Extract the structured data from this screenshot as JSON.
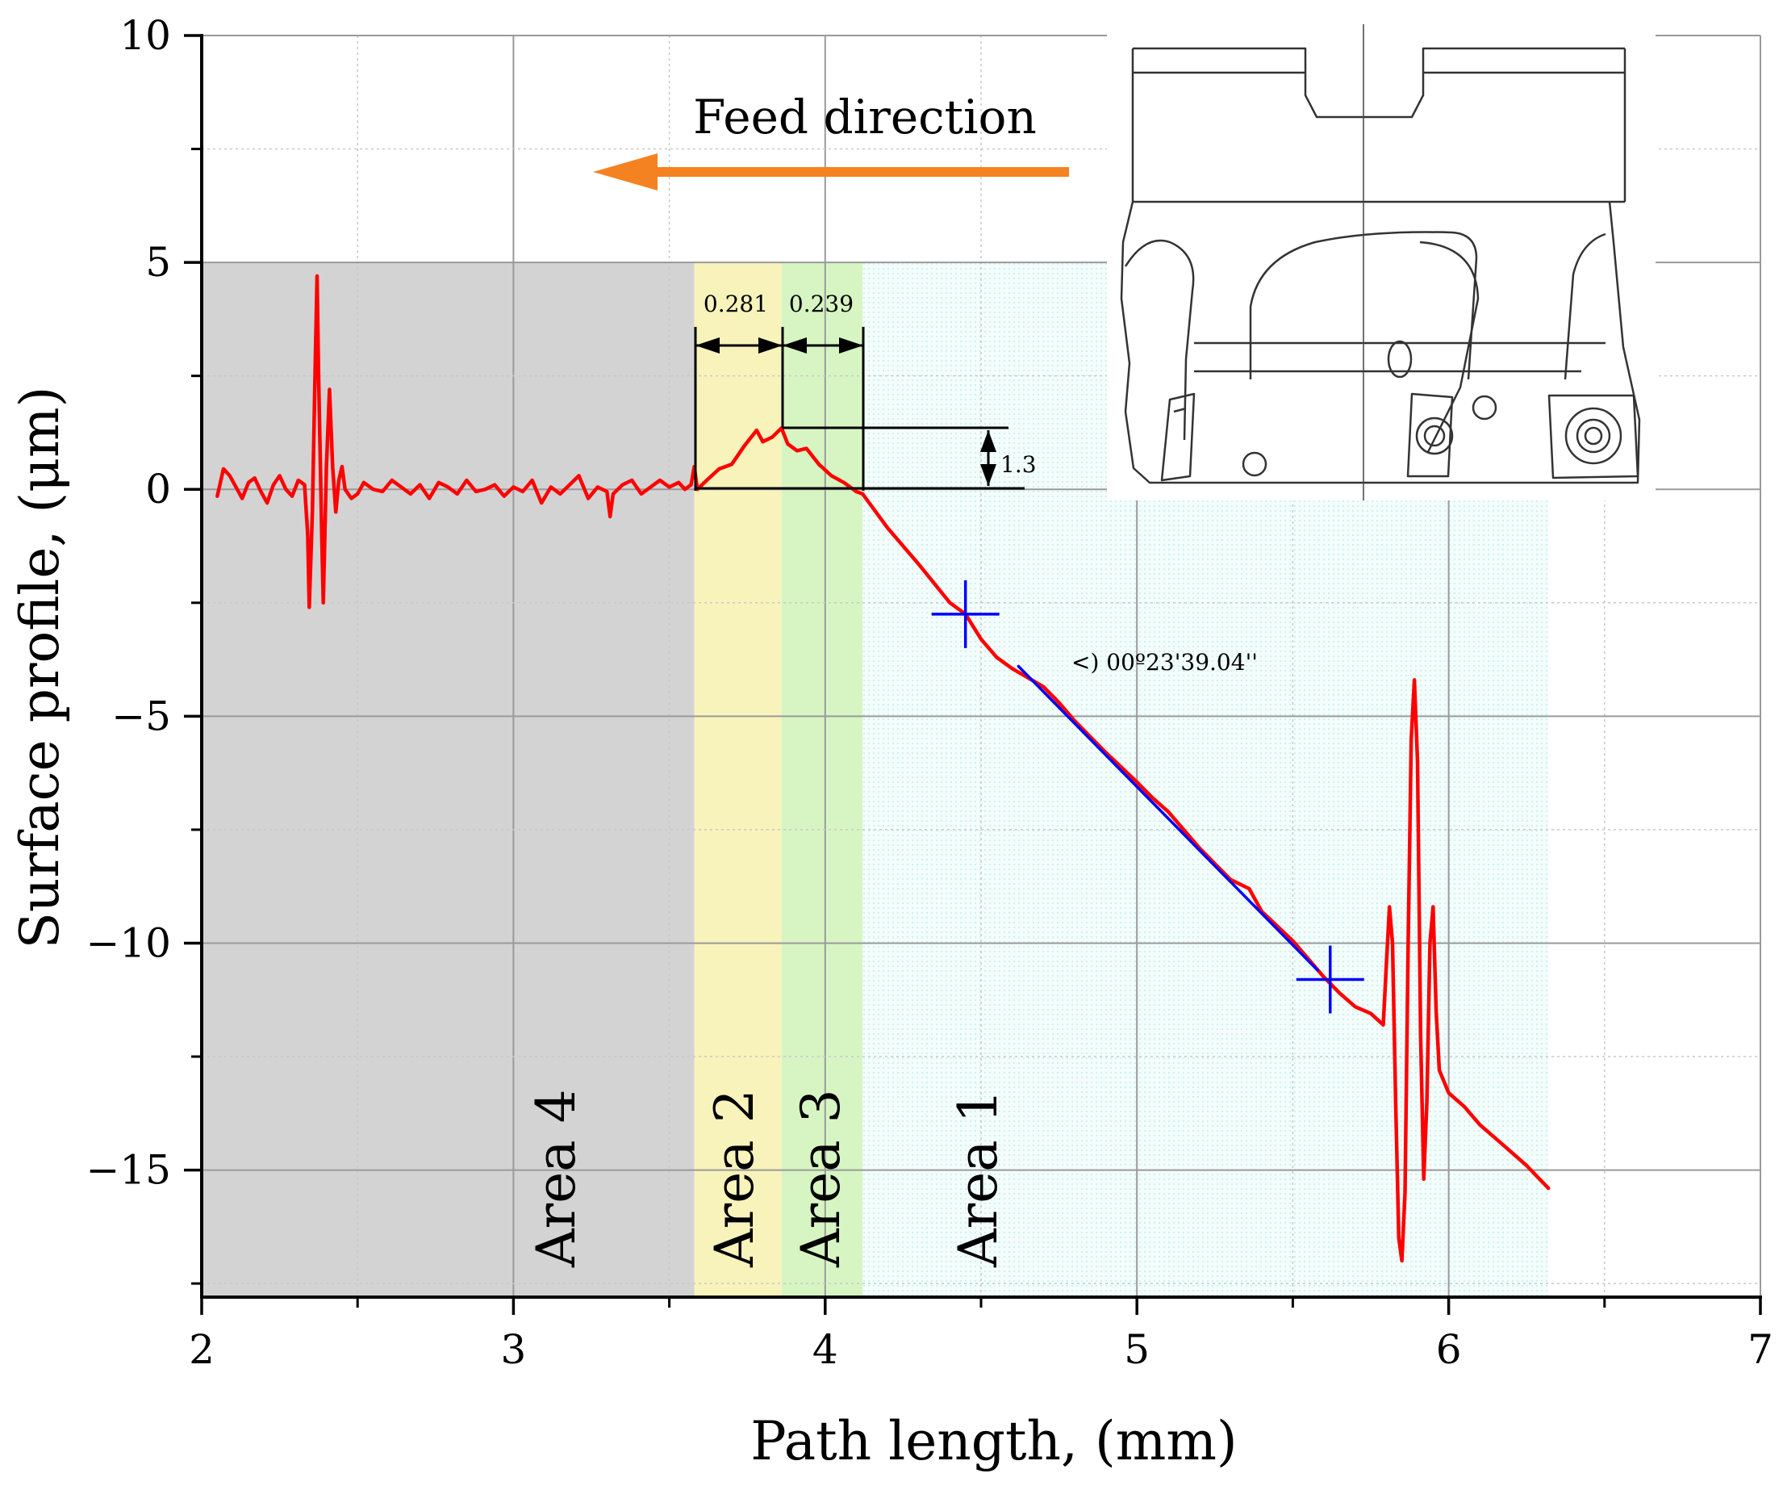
{
  "chart_data": {
    "type": "line",
    "title": "",
    "xlabel": "Path length, (mm)",
    "ylabel": "Surface profile, (μm)",
    "xlim": [
      2,
      7
    ],
    "ylim": [
      -17.8,
      10
    ],
    "x_ticks": [
      2,
      3,
      4,
      5,
      6,
      7
    ],
    "y_ticks": [
      10,
      5,
      0,
      -5,
      -10,
      -15
    ],
    "x_tick_labels": [
      "2",
      "3",
      "4",
      "5",
      "6",
      "7"
    ],
    "y_tick_labels": [
      "10",
      "5",
      "0",
      "−5",
      "−10",
      "−15"
    ],
    "grid": true,
    "regions": [
      {
        "name": "Area 4",
        "x0": 2.0,
        "x1": 3.58,
        "y_top": 5,
        "color": "#d3d3d3"
      },
      {
        "name": "Area 2",
        "x0": 3.58,
        "x1": 3.86,
        "y_top": 5,
        "color": "#f7f3bb"
      },
      {
        "name": "Area 3",
        "x0": 3.86,
        "x1": 4.12,
        "y_top": 5,
        "color": "#d7f5c2"
      },
      {
        "name": "Area 1",
        "x0": 4.12,
        "x1": 6.32,
        "y_top": 5,
        "color": "#eefcf8"
      }
    ],
    "series": [
      {
        "color": "#ff0000",
        "points": [
          [
            2.05,
            -0.15
          ],
          [
            2.07,
            0.45
          ],
          [
            2.09,
            0.3
          ],
          [
            2.11,
            0.05
          ],
          [
            2.13,
            -0.2
          ],
          [
            2.15,
            0.15
          ],
          [
            2.17,
            0.25
          ],
          [
            2.19,
            -0.05
          ],
          [
            2.21,
            -0.3
          ],
          [
            2.23,
            0.1
          ],
          [
            2.25,
            0.3
          ],
          [
            2.27,
            0.0
          ],
          [
            2.29,
            -0.15
          ],
          [
            2.31,
            0.2
          ],
          [
            2.33,
            0.1
          ],
          [
            2.34,
            -1.0
          ],
          [
            2.345,
            -2.6
          ],
          [
            2.355,
            -0.5
          ],
          [
            2.365,
            3.0
          ],
          [
            2.37,
            4.7
          ],
          [
            2.375,
            2.5
          ],
          [
            2.385,
            -1.0
          ],
          [
            2.39,
            -2.5
          ],
          [
            2.4,
            0.5
          ],
          [
            2.41,
            2.2
          ],
          [
            2.42,
            0.5
          ],
          [
            2.43,
            -0.5
          ],
          [
            2.44,
            0.2
          ],
          [
            2.45,
            0.5
          ],
          [
            2.46,
            0.0
          ],
          [
            2.48,
            -0.2
          ],
          [
            2.5,
            -0.1
          ],
          [
            2.52,
            0.15
          ],
          [
            2.55,
            0.0
          ],
          [
            2.58,
            -0.05
          ],
          [
            2.61,
            0.2
          ],
          [
            2.64,
            0.05
          ],
          [
            2.67,
            -0.1
          ],
          [
            2.7,
            0.1
          ],
          [
            2.73,
            -0.2
          ],
          [
            2.76,
            0.15
          ],
          [
            2.79,
            0.05
          ],
          [
            2.82,
            -0.1
          ],
          [
            2.85,
            0.2
          ],
          [
            2.88,
            -0.05
          ],
          [
            2.91,
            0.0
          ],
          [
            2.94,
            0.1
          ],
          [
            2.97,
            -0.15
          ],
          [
            3.0,
            0.05
          ],
          [
            3.03,
            -0.05
          ],
          [
            3.06,
            0.2
          ],
          [
            3.09,
            -0.3
          ],
          [
            3.12,
            0.05
          ],
          [
            3.15,
            -0.1
          ],
          [
            3.18,
            0.1
          ],
          [
            3.21,
            0.3
          ],
          [
            3.24,
            -0.2
          ],
          [
            3.27,
            0.05
          ],
          [
            3.3,
            -0.05
          ],
          [
            3.31,
            -0.6
          ],
          [
            3.32,
            -0.1
          ],
          [
            3.35,
            0.1
          ],
          [
            3.38,
            0.2
          ],
          [
            3.41,
            -0.1
          ],
          [
            3.44,
            0.05
          ],
          [
            3.47,
            0.2
          ],
          [
            3.5,
            0.05
          ],
          [
            3.53,
            0.15
          ],
          [
            3.55,
            0.0
          ],
          [
            3.57,
            0.1
          ],
          [
            3.58,
            0.5
          ],
          [
            3.59,
            0.0
          ],
          [
            3.62,
            0.2
          ],
          [
            3.66,
            0.45
          ],
          [
            3.7,
            0.55
          ],
          [
            3.74,
            0.95
          ],
          [
            3.78,
            1.3
          ],
          [
            3.8,
            1.05
          ],
          [
            3.83,
            1.15
          ],
          [
            3.86,
            1.35
          ],
          [
            3.88,
            1.0
          ],
          [
            3.91,
            0.85
          ],
          [
            3.94,
            0.9
          ],
          [
            3.98,
            0.55
          ],
          [
            4.02,
            0.3
          ],
          [
            4.06,
            0.15
          ],
          [
            4.1,
            -0.05
          ],
          [
            4.12,
            -0.1
          ],
          [
            4.2,
            -0.85
          ],
          [
            4.3,
            -1.65
          ],
          [
            4.4,
            -2.5
          ],
          [
            4.45,
            -2.75
          ],
          [
            4.5,
            -3.3
          ],
          [
            4.55,
            -3.7
          ],
          [
            4.6,
            -3.95
          ],
          [
            4.7,
            -4.35
          ],
          [
            4.75,
            -4.7
          ],
          [
            4.8,
            -5.1
          ],
          [
            4.9,
            -5.8
          ],
          [
            5.0,
            -6.45
          ],
          [
            5.05,
            -6.8
          ],
          [
            5.1,
            -7.1
          ],
          [
            5.2,
            -7.9
          ],
          [
            5.3,
            -8.6
          ],
          [
            5.36,
            -8.8
          ],
          [
            5.4,
            -9.3
          ],
          [
            5.5,
            -9.95
          ],
          [
            5.6,
            -10.75
          ],
          [
            5.65,
            -11.1
          ],
          [
            5.7,
            -11.4
          ],
          [
            5.75,
            -11.55
          ],
          [
            5.79,
            -11.8
          ],
          [
            5.8,
            -10.5
          ],
          [
            5.81,
            -9.2
          ],
          [
            5.82,
            -10.0
          ],
          [
            5.83,
            -13.5
          ],
          [
            5.84,
            -16.5
          ],
          [
            5.85,
            -17.0
          ],
          [
            5.86,
            -15.5
          ],
          [
            5.87,
            -10.0
          ],
          [
            5.88,
            -5.5
          ],
          [
            5.89,
            -4.2
          ],
          [
            5.9,
            -6.0
          ],
          [
            5.91,
            -12.0
          ],
          [
            5.92,
            -15.2
          ],
          [
            5.93,
            -13.5
          ],
          [
            5.94,
            -10.0
          ],
          [
            5.95,
            -9.2
          ],
          [
            5.96,
            -11.5
          ],
          [
            5.97,
            -12.8
          ],
          [
            6.0,
            -13.3
          ],
          [
            6.05,
            -13.6
          ],
          [
            6.1,
            -14.0
          ],
          [
            6.15,
            -14.3
          ],
          [
            6.2,
            -14.6
          ],
          [
            6.25,
            -14.9
          ],
          [
            6.32,
            -15.4
          ]
        ]
      },
      {
        "color": "#0000ff",
        "points": [
          [
            4.62,
            -3.9
          ],
          [
            5.58,
            -10.6
          ]
        ]
      }
    ],
    "markers": [
      {
        "type": "cross",
        "x": 4.45,
        "y": -2.75,
        "color": "#0000ff"
      },
      {
        "type": "cross",
        "x": 5.62,
        "y": -10.8,
        "color": "#0000ff"
      }
    ],
    "annotations": {
      "dim_281": "0.281",
      "dim_239": "0.239",
      "dim_13": "1.3",
      "angle_text": "<)  00º23'39.04''",
      "feed_direction": "Feed direction",
      "feed_arrow_color": "#f58220"
    }
  }
}
